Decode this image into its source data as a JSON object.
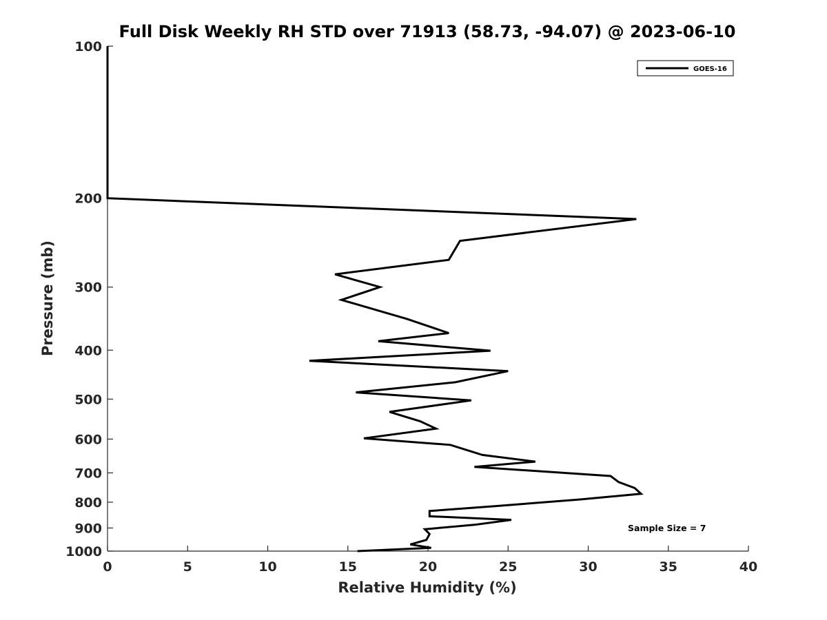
{
  "chart_data": {
    "type": "line",
    "title": "Full Disk Weekly RH STD over 71913 (58.73, -94.07) @ 2023-06-10",
    "xlabel": "Relative Humidity (%)",
    "ylabel": "Pressure (mb)",
    "xlim": [
      0,
      40
    ],
    "ylim": [
      100,
      1000
    ],
    "y_scale": "log",
    "y_reversed": true,
    "x_ticks": [
      "0",
      "5",
      "10",
      "15",
      "20",
      "25",
      "30",
      "35",
      "40"
    ],
    "x_tick_values": [
      0,
      5,
      10,
      15,
      20,
      25,
      30,
      35,
      40
    ],
    "y_ticks": [
      "100",
      "200",
      "300",
      "400",
      "500",
      "600",
      "700",
      "800",
      "900",
      "1000"
    ],
    "y_tick_values": [
      100,
      200,
      300,
      400,
      500,
      600,
      700,
      800,
      900,
      1000
    ],
    "grid": false,
    "legend_position": "top-right",
    "series": [
      {
        "name": "GOES-16",
        "color": "#000000",
        "points": [
          [
            0,
            100
          ],
          [
            0,
            125
          ],
          [
            0,
            150
          ],
          [
            0,
            175
          ],
          [
            0,
            200
          ],
          [
            33.0,
            220
          ],
          [
            22.0,
            243
          ],
          [
            21.3,
            265
          ],
          [
            14.2,
            283
          ],
          [
            17.0,
            300
          ],
          [
            14.6,
            318
          ],
          [
            18.7,
            347
          ],
          [
            21.3,
            370
          ],
          [
            16.9,
            384
          ],
          [
            23.9,
            401
          ],
          [
            12.6,
            420
          ],
          [
            25.0,
            440
          ],
          [
            21.7,
            463
          ],
          [
            15.5,
            485
          ],
          [
            22.7,
            503
          ],
          [
            17.6,
            530
          ],
          [
            19.5,
            553
          ],
          [
            20.5,
            572
          ],
          [
            16.0,
            598
          ],
          [
            21.4,
            616
          ],
          [
            23.4,
            645
          ],
          [
            26.7,
            665
          ],
          [
            22.9,
            681
          ],
          [
            31.4,
            710
          ],
          [
            31.9,
            730
          ],
          [
            32.9,
            750
          ],
          [
            33.3,
            770
          ],
          [
            29.5,
            790
          ],
          [
            24.1,
            815
          ],
          [
            20.1,
            833
          ],
          [
            20.1,
            853
          ],
          [
            25.2,
            867
          ],
          [
            22.9,
            887
          ],
          [
            19.8,
            905
          ],
          [
            20.1,
            925
          ],
          [
            19.9,
            950
          ],
          [
            18.9,
            970
          ],
          [
            20.2,
            985
          ],
          [
            15.6,
            1000
          ]
        ]
      }
    ],
    "annotations": [
      "Sample Size = 7"
    ]
  }
}
